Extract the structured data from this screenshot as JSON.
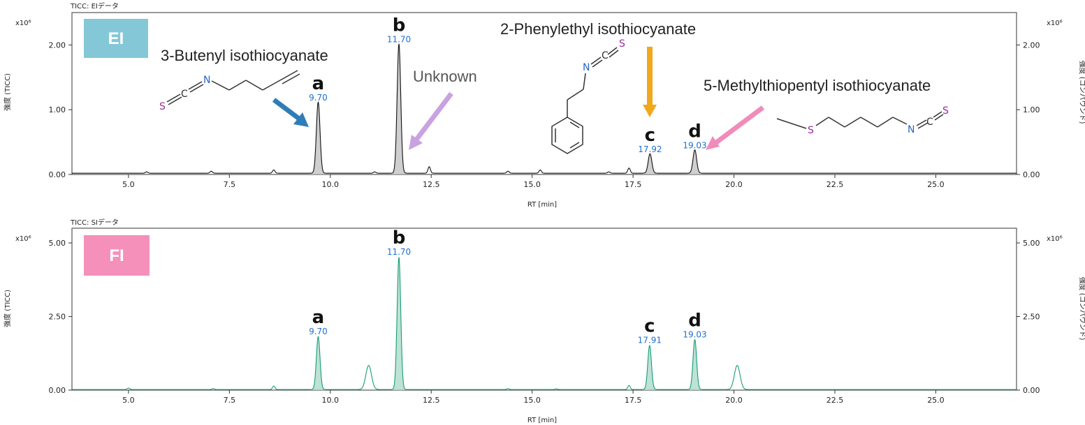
{
  "chart_data": [
    {
      "type": "line",
      "header": "TICC: EIデータ",
      "badge": "EI",
      "badge_color": "#84c8d8",
      "line_color": "#111111",
      "fill_color": "#bfbfbf",
      "ylabel": "強度 (TICC)",
      "ylabel_right": "強度 (コンパウンド)",
      "scale_label": "x10⁶",
      "xlabel": "RT [min]",
      "xlim": [
        3.6,
        27.0
      ],
      "ylim": [
        0,
        2.5
      ],
      "xticks": [
        "5.0",
        "7.5",
        "10.0",
        "12.5",
        "15.0",
        "17.5",
        "20.0",
        "22.5",
        "25.0"
      ],
      "xtick_values": [
        5.0,
        7.5,
        10.0,
        12.5,
        15.0,
        17.5,
        20.0,
        22.5,
        25.0
      ],
      "yticks": [
        "0.00",
        "1.00",
        "2.00"
      ],
      "ytick_values": [
        0.0,
        1.0,
        2.0
      ],
      "baseline": 0.02,
      "peaks": [
        {
          "rt": 9.7,
          "height": 1.1,
          "letter": "a",
          "rt_label": "9.70"
        },
        {
          "rt": 11.7,
          "height": 2.0,
          "letter": "b",
          "rt_label": "11.70"
        },
        {
          "rt": 17.92,
          "height": 0.3,
          "letter": "c",
          "rt_label": "17.92"
        },
        {
          "rt": 19.03,
          "height": 0.36,
          "letter": "d",
          "rt_label": "19.03"
        }
      ],
      "minor_peaks": [
        {
          "rt": 5.45,
          "height": 0.02
        },
        {
          "rt": 7.05,
          "height": 0.03
        },
        {
          "rt": 8.6,
          "height": 0.05
        },
        {
          "rt": 11.1,
          "height": 0.02
        },
        {
          "rt": 12.45,
          "height": 0.1
        },
        {
          "rt": 14.4,
          "height": 0.03
        },
        {
          "rt": 15.2,
          "height": 0.05
        },
        {
          "rt": 16.9,
          "height": 0.02
        },
        {
          "rt": 17.4,
          "height": 0.08
        }
      ],
      "annotations": [
        {
          "text": "3-Butenyl isothiocyanate"
        },
        {
          "text": "Unknown"
        },
        {
          "text": "2-Phenylethyl isothiocyanate"
        },
        {
          "text": "5-Methylthiopentyl isothiocyanate"
        }
      ],
      "arrow_colors": {
        "a": "#2f7db8",
        "unknown": "#c9a2e0",
        "c": "#f0a81c",
        "d": "#f08cbb"
      },
      "atoms": {
        "S": "S",
        "C": "C",
        "N": "N"
      }
    },
    {
      "type": "line",
      "header": "TICC: SIデータ",
      "badge": "FI",
      "badge_color": "#f590bb",
      "line_color": "#159e78",
      "fill_color": "#a8d8c8",
      "ylabel": "強度 (TICC)",
      "ylabel_right": "強度 (コンパウンド)",
      "scale_label": "x10⁶",
      "xlabel": "RT [min]",
      "xlim": [
        3.6,
        27.0
      ],
      "ylim": [
        0,
        5.5
      ],
      "xticks": [
        "5.0",
        "7.5",
        "10.0",
        "12.5",
        "15.0",
        "17.5",
        "20.0",
        "22.5",
        "25.0"
      ],
      "xtick_values": [
        5.0,
        7.5,
        10.0,
        12.5,
        15.0,
        17.5,
        20.0,
        22.5,
        25.0
      ],
      "yticks": [
        "0.00",
        "2.50",
        "5.00"
      ],
      "ytick_values": [
        0.0,
        2.5,
        5.0
      ],
      "baseline": 0.02,
      "peaks": [
        {
          "rt": 9.7,
          "height": 1.8,
          "letter": "a",
          "rt_label": "9.70"
        },
        {
          "rt": 11.7,
          "height": 4.5,
          "letter": "b",
          "rt_label": "11.70"
        },
        {
          "rt": 17.91,
          "height": 1.5,
          "letter": "c",
          "rt_label": "17.91"
        },
        {
          "rt": 19.03,
          "height": 1.7,
          "letter": "d",
          "rt_label": "19.03"
        }
      ],
      "minor_peaks": [
        {
          "rt": 5.0,
          "height": 0.05
        },
        {
          "rt": 7.1,
          "height": 0.03
        },
        {
          "rt": 8.6,
          "height": 0.12
        },
        {
          "rt": 10.95,
          "height": 0.82,
          "broad": true
        },
        {
          "rt": 14.4,
          "height": 0.03
        },
        {
          "rt": 15.6,
          "height": 0.02
        },
        {
          "rt": 17.4,
          "height": 0.14
        },
        {
          "rt": 20.08,
          "height": 0.82,
          "broad": true
        }
      ]
    }
  ]
}
